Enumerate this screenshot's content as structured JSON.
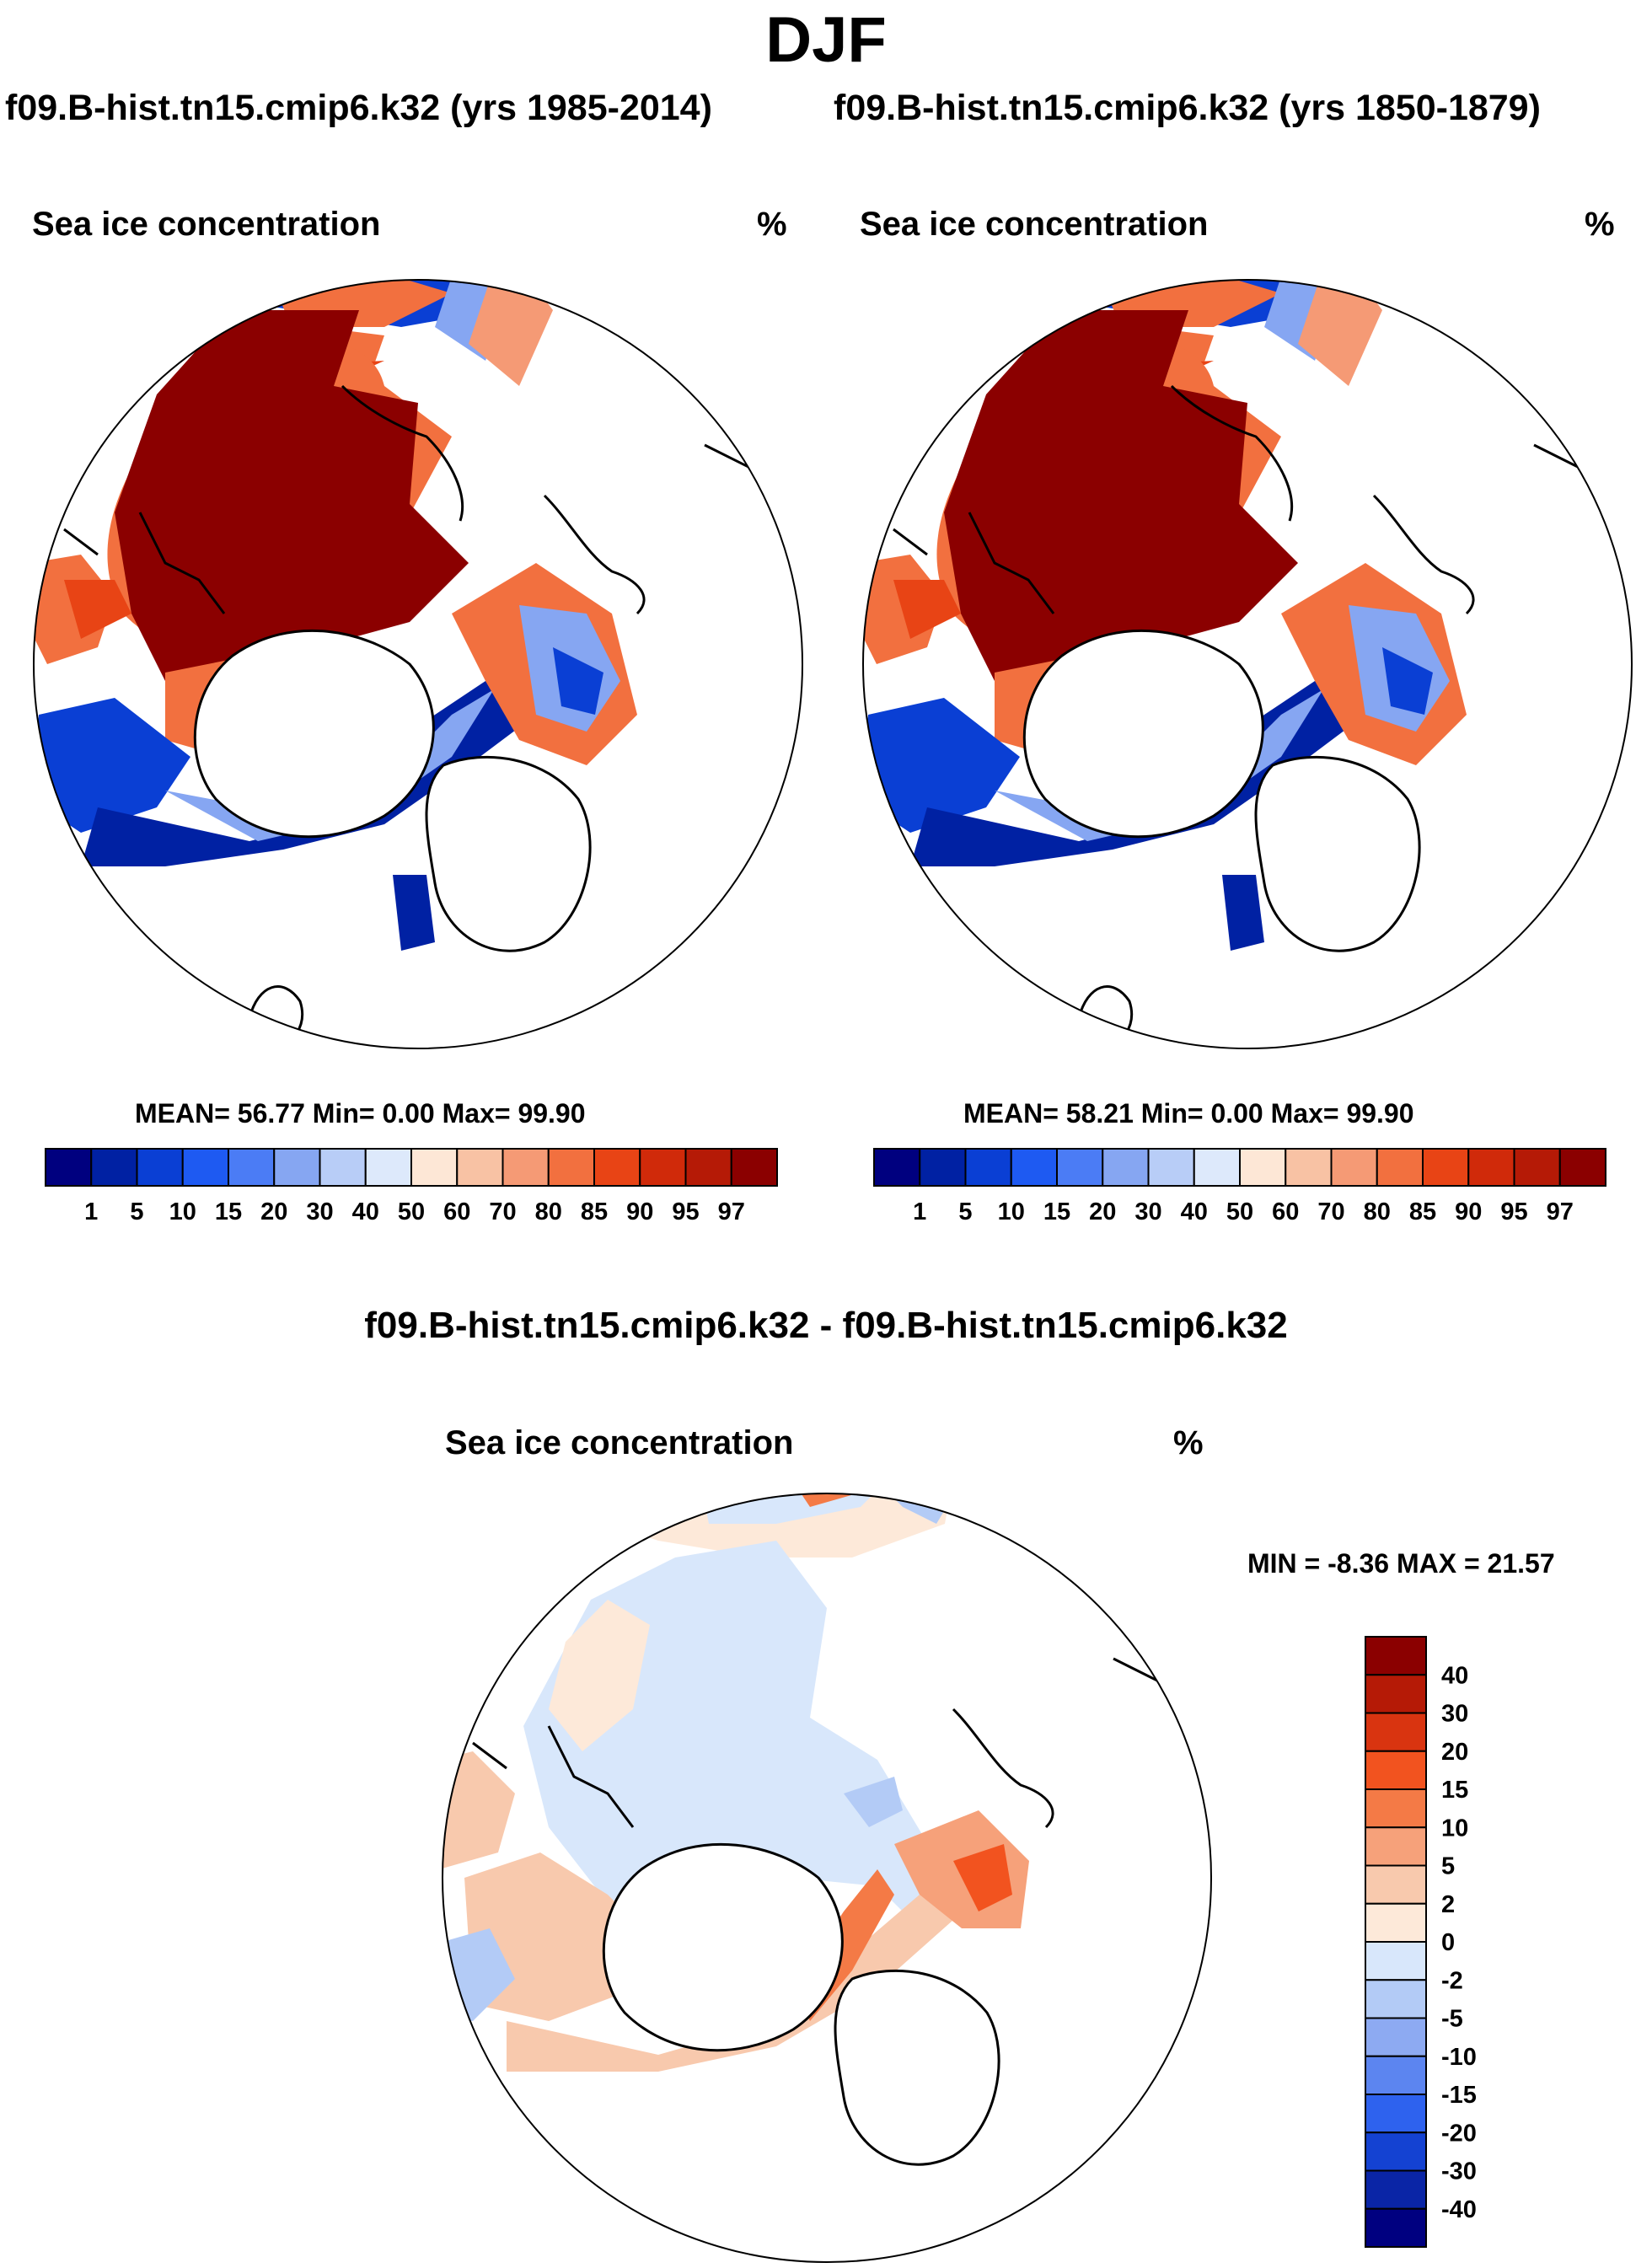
{
  "title": "DJF",
  "panels": [
    {
      "case_title": "f09.B-hist.tn15.cmip6.k32 (yrs 1985-2014)",
      "variable": "Sea ice concentration",
      "units": "%",
      "stats": "MEAN=  56.77  Min=    0.00  Max=  99.90"
    },
    {
      "case_title": "f09.B-hist.tn15.cmip6.k32 (yrs 1850-1879)",
      "variable": "Sea ice concentration",
      "units": "%",
      "stats": "MEAN=  58.21  Min=    0.00  Max=  99.90"
    }
  ],
  "diff_panel": {
    "title": "f09.B-hist.tn15.cmip6.k32 - f09.B-hist.tn15.cmip6.k32",
    "variable": "Sea ice concentration",
    "units": "%",
    "stats": "MIN =  -8.36 MAX =  21.57"
  },
  "colorbar_abs": {
    "levels": [
      "1",
      "5",
      "10",
      "15",
      "20",
      "30",
      "40",
      "50",
      "60",
      "70",
      "80",
      "85",
      "90",
      "95",
      "97"
    ],
    "colors": [
      "#00007f",
      "#0021a3",
      "#0a3fd4",
      "#1e5af2",
      "#4b7cf5",
      "#86a6f2",
      "#b8cdf7",
      "#dde9fb",
      "#fde7d6",
      "#f8c2a4",
      "#f59a75",
      "#f2703f",
      "#e84415",
      "#d02a0a",
      "#b51a06",
      "#8b0000"
    ]
  },
  "colorbar_diff": {
    "levels": [
      "40",
      "30",
      "20",
      "15",
      "10",
      "5",
      "2",
      "0",
      "-2",
      "-5",
      "-10",
      "-15",
      "-20",
      "-30",
      "-40"
    ],
    "colors": [
      "#8b0000",
      "#b51a06",
      "#d93410",
      "#f2531f",
      "#f47a46",
      "#f6a17a",
      "#f8c9ad",
      "#fde9d9",
      "#d8e7fb",
      "#b3cbf6",
      "#8daaf2",
      "#5c85f0",
      "#2e62ee",
      "#1442d2",
      "#0a25a6",
      "#000080"
    ]
  }
}
